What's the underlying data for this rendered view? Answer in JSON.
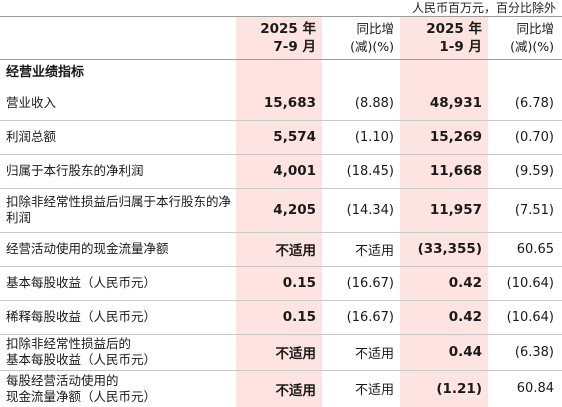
{
  "unit_note": "人民币百万元，百分比除外",
  "header": {
    "col1": [
      "2025 年",
      "7-9 月"
    ],
    "col2": [
      "同比增",
      "(减)(%)"
    ],
    "col3": [
      "2025 年",
      "1-9 月"
    ],
    "col4": [
      "同比增",
      "(减)(%)"
    ]
  },
  "section_title": "经营业绩指标",
  "rows": [
    {
      "label": [
        "营业收入"
      ],
      "q3": "15,683",
      "q3_yoy": "(8.88)",
      "ytd": "48,931",
      "ytd_yoy": "(6.78)"
    },
    {
      "label": [
        "利润总额"
      ],
      "q3": "5,574",
      "q3_yoy": "(1.10)",
      "ytd": "15,269",
      "ytd_yoy": "(0.70)"
    },
    {
      "label": [
        "归属于本行股东的净利润"
      ],
      "q3": "4,001",
      "q3_yoy": "(18.45)",
      "ytd": "11,668",
      "ytd_yoy": "(9.59)"
    },
    {
      "label": [
        "扣除非经常性损益后归属于本行股东的净",
        "利润"
      ],
      "q3": "4,205",
      "q3_yoy": "(14.34)",
      "ytd": "11,957",
      "ytd_yoy": "(7.51)"
    },
    {
      "label": [
        "经营活动使用的现金流量净额"
      ],
      "q3": "不适用",
      "q3_yoy": "不适用",
      "ytd": "(33,355)",
      "ytd_yoy": "60.65"
    },
    {
      "label": [
        "基本每股收益（人民币元）"
      ],
      "q3": "0.15",
      "q3_yoy": "(16.67)",
      "ytd": "0.42",
      "ytd_yoy": "(10.64)"
    },
    {
      "label": [
        "稀释每股收益（人民币元）"
      ],
      "q3": "0.15",
      "q3_yoy": "(16.67)",
      "ytd": "0.42",
      "ytd_yoy": "(10.64)"
    },
    {
      "label": [
        "扣除非经常性损益后的",
        "基本每股收益（人民币元）"
      ],
      "q3": "不适用",
      "q3_yoy": "不适用",
      "ytd": "0.44",
      "ytd_yoy": "(6.38)"
    },
    {
      "label": [
        "每股经营活动使用的",
        "现金流量净额（人民币元）"
      ],
      "q3": "不适用",
      "q3_yoy": "不适用",
      "ytd": "(1.21)",
      "ytd_yoy": "60.84"
    }
  ]
}
